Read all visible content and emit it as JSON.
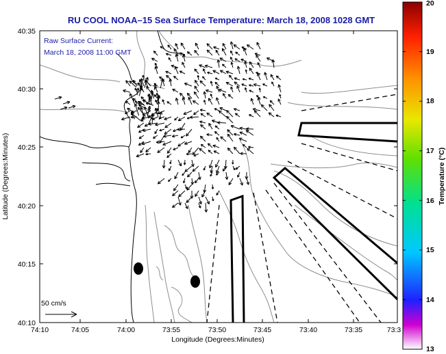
{
  "title": "RU COOL  NOAA–15  Sea Surface Temperature:  March 18, 2008 1028 GMT",
  "annotation": {
    "line1": "Raw Surface Current:",
    "line2": "March 18, 2008 11:00 GMT"
  },
  "scale_label": "50 cm/s",
  "xlabel": "Longitude (Degrees:Minutes)",
  "ylabel": "Latitude (Degrees:Minutes)",
  "x_ticks": [
    "74:10",
    "74:05",
    "74:00",
    "73:55",
    "73:50",
    "73:45",
    "73:40",
    "73:35",
    "73:3"
  ],
  "y_ticks": [
    "40:35",
    "40:30",
    "40:25",
    "40:20",
    "40:15",
    "40:10"
  ],
  "colorbar": {
    "label": "Temperature (°C)",
    "min": 13,
    "max": 20,
    "ticks": [
      "20",
      "19",
      "18",
      "17",
      "16",
      "15",
      "14",
      "13"
    ]
  },
  "colors": {
    "title": "#1a1aa8",
    "land": "#ffffff",
    "contour": "#8c8c8c",
    "vectors": "#000000"
  }
}
